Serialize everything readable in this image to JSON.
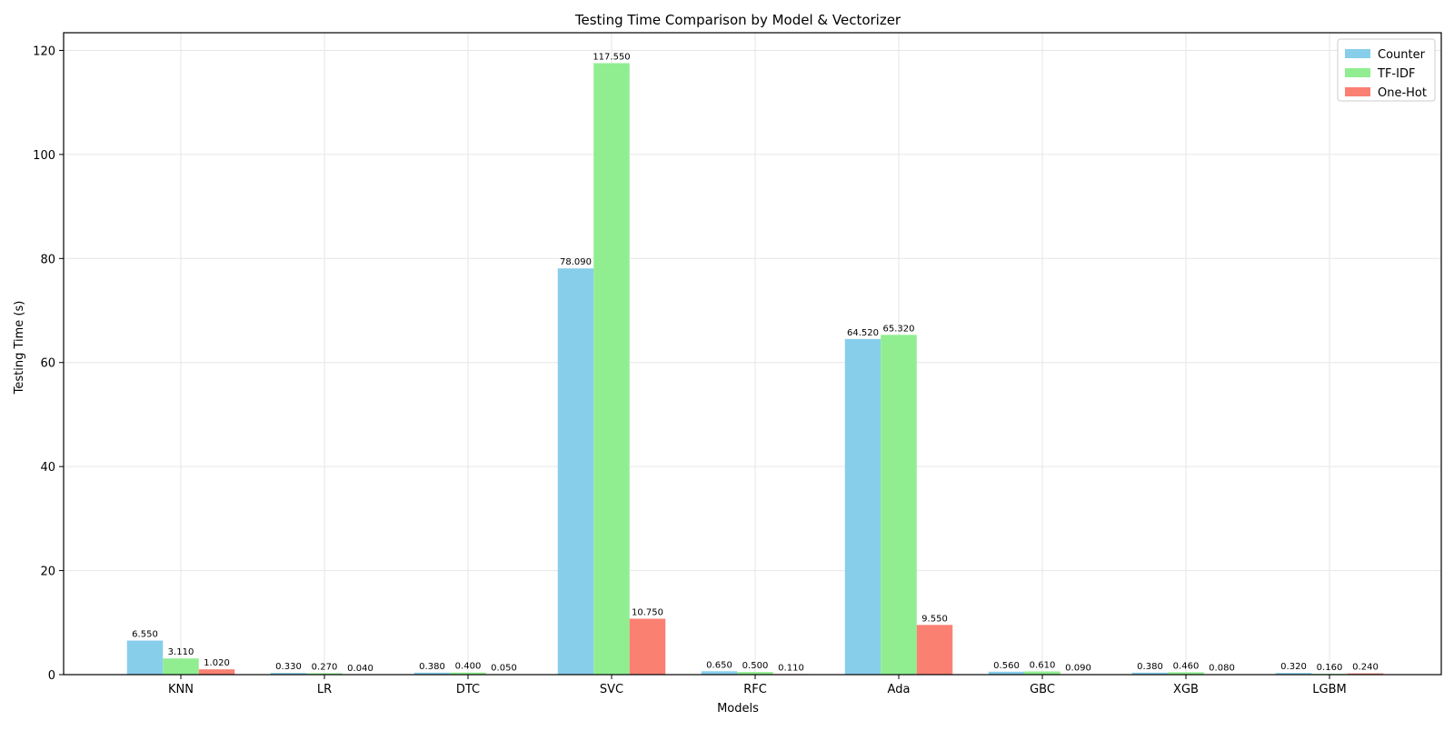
{
  "chart_data": {
    "type": "bar",
    "title": "Testing Time Comparison by Model & Vectorizer",
    "xlabel": "Models",
    "ylabel": "Testing Time (s)",
    "categories": [
      "KNN",
      "LR",
      "DTC",
      "SVC",
      "RFC",
      "Ada",
      "GBC",
      "XGB",
      "LGBM"
    ],
    "ylim": [
      0,
      123.4
    ],
    "yticks": [
      0,
      20,
      40,
      60,
      80,
      100,
      120
    ],
    "grid": true,
    "legend_position": "top-right",
    "series": [
      {
        "name": "Counter",
        "color": "#87ceeb",
        "values": [
          6.55,
          0.33,
          0.38,
          78.09,
          0.65,
          64.52,
          0.56,
          0.38,
          0.32
        ],
        "labels": [
          "6.550",
          "0.330",
          "0.380",
          "78.090",
          "0.650",
          "64.520",
          "0.560",
          "0.380",
          "0.320"
        ]
      },
      {
        "name": "TF-IDF",
        "color": "#90ee90",
        "values": [
          3.11,
          0.27,
          0.4,
          117.55,
          0.5,
          65.32,
          0.61,
          0.46,
          0.16
        ],
        "labels": [
          "3.110",
          "0.270",
          "0.400",
          "117.550",
          "0.500",
          "65.320",
          "0.610",
          "0.460",
          "0.160"
        ]
      },
      {
        "name": "One-Hot",
        "color": "#fa8072",
        "values": [
          1.02,
          0.04,
          0.05,
          10.75,
          0.11,
          9.55,
          0.09,
          0.08,
          0.24
        ],
        "labels": [
          "1.020",
          "0.040",
          "0.050",
          "10.750",
          "0.110",
          "9.550",
          "0.090",
          "0.080",
          "0.240"
        ]
      }
    ]
  }
}
